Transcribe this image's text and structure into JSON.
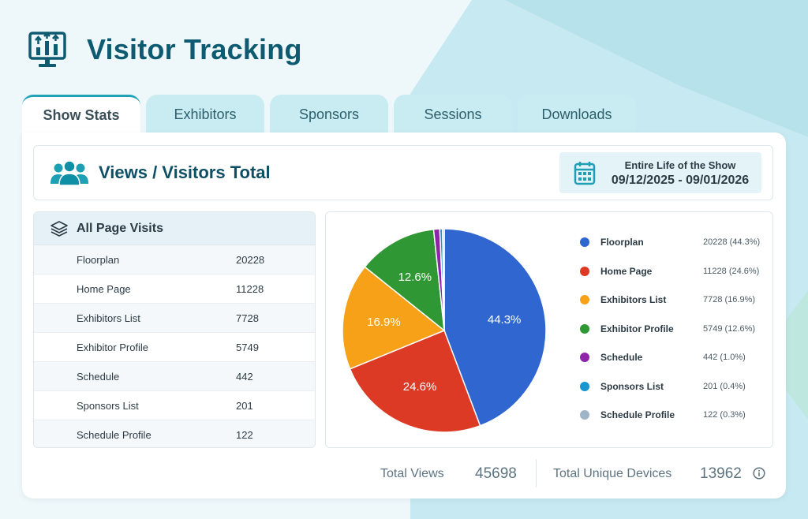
{
  "app": {
    "title": "Visitor Tracking",
    "icon": "monitor-chart-icon"
  },
  "tabs": [
    {
      "label": "Show Stats",
      "active": true
    },
    {
      "label": "Exhibitors",
      "active": false
    },
    {
      "label": "Sponsors",
      "active": false
    },
    {
      "label": "Sessions",
      "active": false
    },
    {
      "label": "Downloads",
      "active": false
    }
  ],
  "views": {
    "title": "Views / Visitors Total",
    "icon": "users-icon",
    "date_label": "Entire Life of the Show",
    "date_range": "09/12/2025 - 09/01/2026",
    "date_icon": "calendar-icon"
  },
  "visits": {
    "title": "All Page Visits",
    "icon": "layers-icon",
    "rows": [
      {
        "name": "Floorplan",
        "value": "20228"
      },
      {
        "name": "Home Page",
        "value": "11228"
      },
      {
        "name": "Exhibitors List",
        "value": "7728"
      },
      {
        "name": "Exhibitor Profile",
        "value": "5749"
      },
      {
        "name": "Schedule",
        "value": "442"
      },
      {
        "name": "Sponsors List",
        "value": "201"
      },
      {
        "name": "Schedule Profile",
        "value": "122"
      }
    ]
  },
  "chart_data": {
    "type": "pie",
    "slices": [
      {
        "label": "Floorplan",
        "value": 20228,
        "percent": "44.3%",
        "legend_value": "20228 (44.3%)",
        "color": "#2f66cf"
      },
      {
        "label": "Home Page",
        "value": 11228,
        "percent": "24.6%",
        "legend_value": "11228 (24.6%)",
        "color": "#dc3a24"
      },
      {
        "label": "Exhibitors List",
        "value": 7728,
        "percent": "16.9%",
        "legend_value": "7728 (16.9%)",
        "color": "#f6a117"
      },
      {
        "label": "Exhibitor Profile",
        "value": 5749,
        "percent": "12.6%",
        "legend_value": "5749 (12.6%)",
        "color": "#2f9733"
      },
      {
        "label": "Schedule",
        "value": 442,
        "percent": "1.0%",
        "legend_value": "442 (1.0%)",
        "color": "#8e24aa"
      },
      {
        "label": "Sponsors List",
        "value": 201,
        "percent": "0.4%",
        "legend_value": "201 (0.4%)",
        "color": "#1a96cf"
      },
      {
        "label": "Schedule Profile",
        "value": 122,
        "percent": "0.3%",
        "legend_value": "122 (0.3%)",
        "color": "#9fb4c7"
      }
    ],
    "legend_position": "right"
  },
  "totals": {
    "views_label": "Total Views",
    "views_value": "45698",
    "devices_label": "Total Unique Devices",
    "devices_value": "13962",
    "info_icon": "info-icon"
  },
  "colors": {
    "brand": "#0e5a70",
    "tab_bg": "#c9ebf2",
    "accent": "#22a3b5"
  }
}
